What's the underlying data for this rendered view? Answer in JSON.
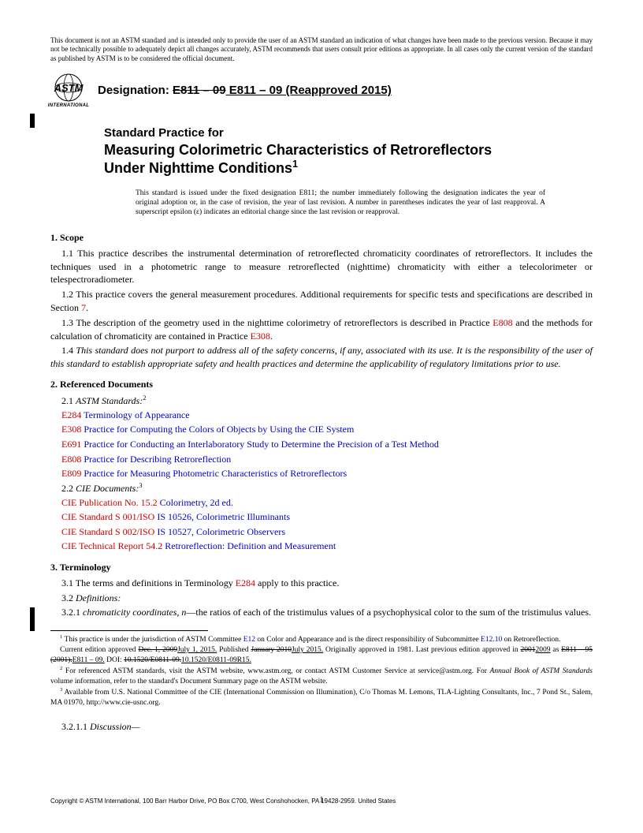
{
  "disclaimer": "This document is not an ASTM standard and is intended only to provide the user of an ASTM standard an indication of what changes have been made to the previous version. Because it may not be technically possible to adequately depict all changes accurately, ASTM recommends that users consult prior editions as appropriate. In all cases only the current version of the standard as published by ASTM is to be considered the official document.",
  "logo_label": "INTERNATIONAL",
  "designation_label": "Designation: ",
  "designation_old": "E811 – 09",
  "designation_new": " E811 – 09 (Reapproved 2015)",
  "title_kicker": "Standard Practice for",
  "title_main_a": "Measuring Colorimetric Characteristics of Retroreflectors",
  "title_main_b": "Under Nighttime Conditions",
  "title_sup": "1",
  "issue_note": "This standard is issued under the fixed designation E811; the number immediately following the designation indicates the year of original adoption or, in the case of revision, the year of last revision. A number in parentheses indicates the year of last reapproval. A superscript epsilon (ε) indicates an editorial change since the last revision or reapproval.",
  "sections": {
    "scope_head": "1. Scope",
    "scope_1_1": "1.1 This practice describes the instrumental determination of retroreflected chromaticity coordinates of retroreflectors. It includes the techniques used in a photometric range to measure retroreflected (nighttime) chromaticity with either a telecolorimeter or telespectroradiometer.",
    "scope_1_2_a": "1.2 This practice covers the general measurement procedures. Additional requirements for specific tests and specifications are described in Section ",
    "scope_1_2_link": "7",
    "scope_1_2_b": ".",
    "scope_1_3_a": "1.3 The description of the geometry used in the nighttime colorimetry of retroreflectors is described in Practice ",
    "scope_1_3_link1": "E808",
    "scope_1_3_b": " and the methods for calculation of chromaticity are contained in Practice ",
    "scope_1_3_link2": "E308",
    "scope_1_3_c": ".",
    "scope_1_4": "1.4 This standard does not purport to address all of the safety concerns, if any, associated with its use. It is the responsibility of the user of this standard to establish appropriate safety and health practices and determine the applicability of regulatory limitations prior to use.",
    "refdocs_head": "2. Referenced Documents",
    "refdocs_2_1": "2.1 ASTM Standards:",
    "refs": [
      {
        "code": "E284",
        "title": "Terminology of Appearance"
      },
      {
        "code": "E308",
        "title": "Practice for Computing the Colors of Objects by Using the CIE System"
      },
      {
        "code": "E691",
        "title": "Practice for Conducting an Interlaboratory Study to Determine the Precision of a Test Method"
      },
      {
        "code": "E808",
        "title": "Practice for Describing Retroreflection"
      },
      {
        "code": "E809",
        "title": "Practice for Measuring Photometric Characteristics of Retroreflectors"
      }
    ],
    "refdocs_2_2": "2.2 CIE Documents:",
    "cie_refs": [
      {
        "code": "CIE Publication No. 15.2",
        "title": "Colorimetry, 2d ed."
      },
      {
        "code": "CIE Standard S 001/ISO",
        "title": "IS 10526, Colorimetric Illuminants"
      },
      {
        "code": "CIE Standard S 002/ISO",
        "title": "IS 10527, Colorimetric Observers"
      },
      {
        "code": "CIE Technical Report 54.2",
        "title": "Retroreflection: Definition and Measurement"
      }
    ],
    "term_head": "3. Terminology",
    "term_3_1_a": "3.1 The terms and definitions in Terminology ",
    "term_3_1_link": "E284",
    "term_3_1_b": " apply to this practice.",
    "term_3_2": "3.2 Definitions:",
    "term_3_2_1_a": "3.2.1 ",
    "term_3_2_1_term": "chromaticity coordinates, n",
    "term_3_2_1_b": "—the ratios of each of the tristimulus values of a psychophysical color to the sum of the tristimulus values.",
    "term_3_2_1_1": "3.2.1.1 Discussion—"
  },
  "footnotes": {
    "fn1_a": " This practice is under the jurisdiction of ASTM Committee ",
    "fn1_link1": "E12",
    "fn1_b": " on Color and Appearance and is the direct responsibility of Subcommittee ",
    "fn1_link2": "E12.10",
    "fn1_c": " on Retroreflection.",
    "fn1_line2_a": "Current edition approved ",
    "fn1_line2_old1": "Dec. 1, 2009",
    "fn1_line2_new1": "July 1, 2015.",
    "fn1_line2_b": " Published ",
    "fn1_line2_old2": "January 2010",
    "fn1_line2_new2": "July 2015.",
    "fn1_line2_c": " Originally approved in 1981. Last previous edition approved in ",
    "fn1_line2_old3": "2001",
    "fn1_line2_new3": "2009",
    "fn1_line2_d": " as ",
    "fn1_line3_old": "E811 – 95 (2001).",
    "fn1_line3_new": "E811 – 09.",
    "fn1_line3_a": " DOI: ",
    "fn1_line3_doi_old": "10.1520/E0811-09.",
    "fn1_line3_doi_new": "10.1520/E0811-09R15.",
    "fn2": " For referenced ASTM standards, visit the ASTM website, www.astm.org, or contact ASTM Customer Service at service@astm.org. For Annual Book of ASTM Standards volume information, refer to the standard's Document Summary page on the ASTM website.",
    "fn2_a": " For referenced ASTM standards, visit the ASTM website, www.astm.org, or contact ASTM Customer Service at service@astm.org. For ",
    "fn2_ital": "Annual Book of ASTM Standards",
    "fn2_b": " volume information, refer to the standard's Document Summary page on the ASTM website.",
    "fn3": " Available from U.S. National Committee of the CIE (International Commission on Illumination), C/o Thomas M. Lemons, TLA-Lighting Consultants, Inc., 7 Pond St., Salem, MA 01970, http://www.cie-usnc.org."
  },
  "copyright": "Copyright © ASTM International, 100 Barr Harbor Drive, PO Box C700, West Conshohocken, PA 19428-2959. United States",
  "pagenum": "1",
  "footnote_sups": {
    "s1": "1",
    "s2": "2",
    "s3": "3"
  },
  "ref_sup2": "2",
  "ref_sup3": "3"
}
